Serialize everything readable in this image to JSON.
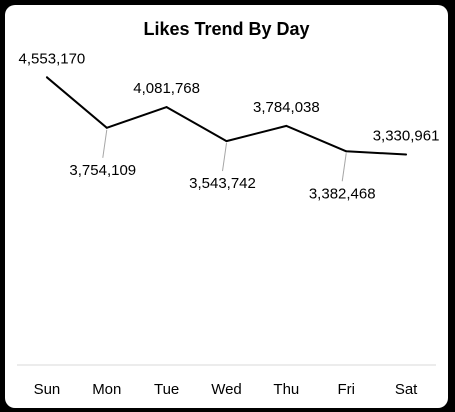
{
  "chart_data": {
    "type": "line",
    "title": "Likes Trend By Day",
    "xlabel": "",
    "ylabel": "",
    "categories": [
      "Sun",
      "Mon",
      "Tue",
      "Wed",
      "Thu",
      "Fri",
      "Sat"
    ],
    "values": [
      4553170,
      3754109,
      4081768,
      3543742,
      3784038,
      3382468,
      3330961
    ],
    "data_labels": [
      "4,553,170",
      "3,754,109",
      "4,081,768",
      "3,543,742",
      "3,784,038",
      "3,382,468",
      "3,330,961"
    ],
    "label_positions": [
      "above",
      "below",
      "above",
      "below",
      "above",
      "below",
      "above"
    ],
    "ylim": [
      0,
      4700000
    ],
    "grid": false,
    "legend": "none",
    "colors": {
      "line": "#000000",
      "leader": "#a6a6a6",
      "axis": "#d9d9d9",
      "frame": "#000000",
      "card": "#ffffff"
    }
  }
}
